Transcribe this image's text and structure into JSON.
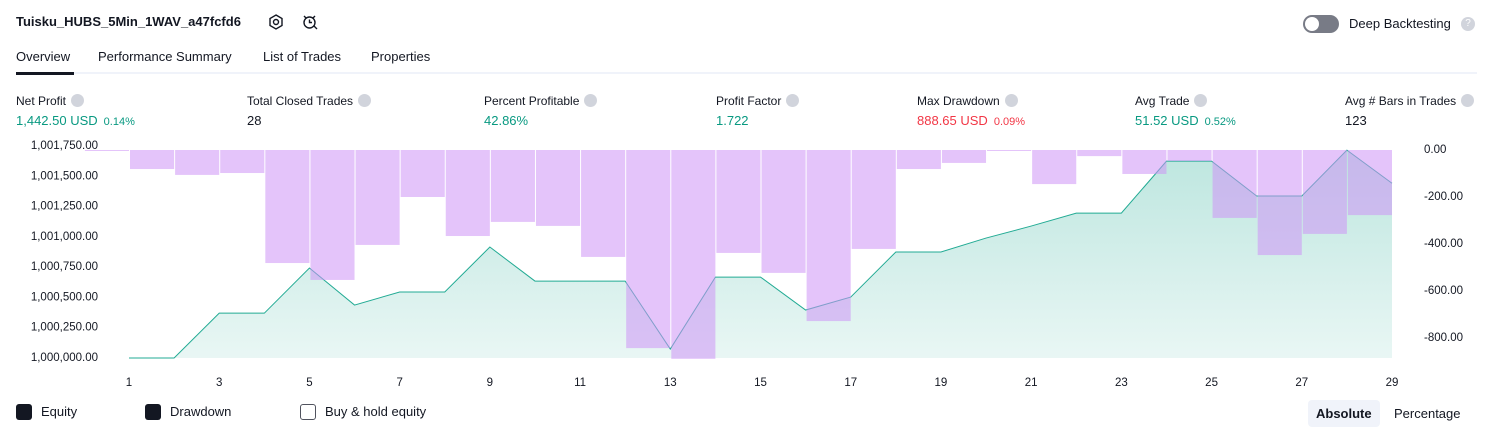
{
  "header": {
    "title": "Tuisku_HUBS_5Min_1WAV_a47fcfd6",
    "toggle": "Deep Backtesting"
  },
  "tabs": [
    "Overview",
    "Performance Summary",
    "List of Trades",
    "Properties"
  ],
  "stats": [
    {
      "label": "Net Profit",
      "value": "1,442.50 USD",
      "change": "0.14%"
    },
    {
      "label": "Total Closed Trades",
      "value": "28"
    },
    {
      "label": "Percent Profitable",
      "value": "42.86%"
    },
    {
      "label": "Profit Factor",
      "value": "1.722"
    },
    {
      "label": "Max Drawdown",
      "value": "888.65 USD",
      "change": "0.09%"
    },
    {
      "label": "Avg Trade",
      "value": "51.52 USD",
      "change": "0.52%"
    },
    {
      "label": "Avg # Bars in Trades",
      "value": "123"
    }
  ],
  "chart_data": {
    "type": "line",
    "x": [
      1,
      2,
      3,
      4,
      5,
      6,
      7,
      8,
      9,
      10,
      11,
      12,
      13,
      14,
      15,
      16,
      17,
      18,
      19,
      20,
      21,
      22,
      23,
      24,
      25,
      26,
      27,
      28,
      29
    ],
    "xlim": [
      1,
      29
    ],
    "xticks": [
      1,
      3,
      5,
      7,
      9,
      11,
      13,
      15,
      17,
      19,
      21,
      23,
      25,
      27,
      29
    ],
    "ylim": [
      1000000,
      1001750
    ],
    "yticks": [
      {
        "value": 1001750,
        "label": "1,001,750.00"
      },
      {
        "value": 1001500,
        "label": "1,001,500.00"
      },
      {
        "value": 1001250,
        "label": "1,001,250.00"
      },
      {
        "value": 1001000,
        "label": "1,001,000.00"
      },
      {
        "value": 1000750,
        "label": "1,000,750.00"
      },
      {
        "value": 1000500,
        "label": "1,000,500.00"
      },
      {
        "value": 1000250,
        "label": "1,000,250.00"
      },
      {
        "value": 1000000,
        "label": "1,000,000.00"
      }
    ],
    "y2lim": [
      -800,
      0
    ],
    "y2ticks": [
      {
        "value": 0,
        "label": "0.00"
      },
      {
        "value": -200,
        "label": "-200.00"
      },
      {
        "value": -400,
        "label": "-400.00"
      },
      {
        "value": -600,
        "label": "-600.00"
      },
      {
        "value": -800,
        "label": "-800.00"
      }
    ],
    "series": [
      {
        "name": "Equity",
        "color": "#22ab94",
        "values": [
          1000000,
          1000000,
          1000370,
          1000370,
          1000743,
          1000437,
          1000545,
          1000545,
          1000916,
          1000635,
          1000635,
          1000635,
          1000074,
          1000668,
          1000668,
          1000396,
          1000503,
          1000875,
          1000875,
          1000990,
          1001089,
          1001196,
          1001196,
          1001625,
          1001625,
          1001337,
          1001337,
          1001716,
          1001442.5
        ]
      },
      {
        "name": "Drawdown",
        "type": "bar",
        "axis": "y2",
        "color": "#ce93f5",
        "values": [
          0,
          -81,
          -106,
          -98,
          -481,
          -553,
          -404,
          -200,
          -366,
          -306,
          -323,
          -455,
          -843,
          -888.65,
          -438,
          -523,
          -728,
          -421,
          -81,
          -55,
          -4,
          -145,
          -26,
          -102,
          -47,
          -289,
          -447,
          -357,
          -277
        ]
      },
      {
        "name": "Buy & hold equity"
      }
    ]
  },
  "modes": [
    "Absolute",
    "Percentage"
  ]
}
